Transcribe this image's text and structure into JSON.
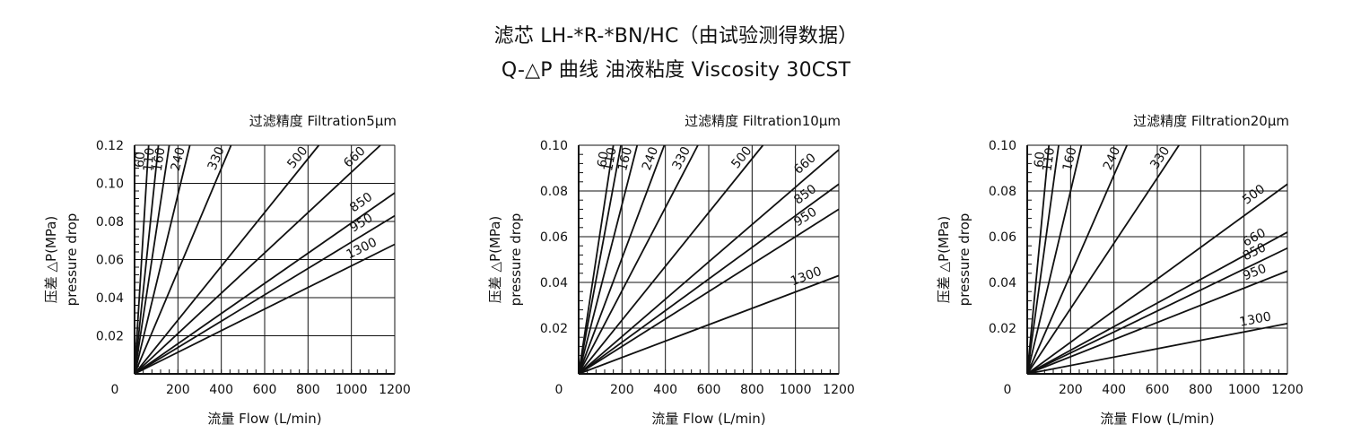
{
  "header": {
    "line1": "滤芯 LH-*R-*BN/HC（由试验测得数据）",
    "line2": "Q-△P 曲线 油液粘度 Viscosity 30CST"
  },
  "chart_data": [
    {
      "type": "line",
      "title": "过滤精度 Filtration5μm",
      "xlabel": "流量 Flow (L/min)",
      "ylabel_cn": "压差 △P(MPa)",
      "ylabel_en": "pressure drop",
      "xlim": [
        0,
        1200
      ],
      "ylim": [
        0,
        0.12
      ],
      "xticks": [
        0,
        200,
        400,
        600,
        800,
        1000,
        1200
      ],
      "yticks": [
        0.02,
        0.04,
        0.06,
        0.08,
        0.1,
        0.12
      ],
      "ytick_labels": [
        "0.02",
        "0.04",
        "0.06",
        "0.08",
        "0.10",
        "0.12"
      ],
      "xtick_labels": [
        "200",
        "400",
        "600",
        "800",
        "1000",
        "1200"
      ],
      "origin_label": "0",
      "grid": true,
      "series": [
        {
          "name": "60",
          "x": [
            0,
            65
          ],
          "y": [
            0,
            0.12
          ]
        },
        {
          "name": "110",
          "x": [
            0,
            110
          ],
          "y": [
            0,
            0.12
          ]
        },
        {
          "name": "160",
          "x": [
            0,
            160
          ],
          "y": [
            0,
            0.12
          ]
        },
        {
          "name": "240",
          "x": [
            0,
            255
          ],
          "y": [
            0,
            0.12
          ]
        },
        {
          "name": "330",
          "x": [
            0,
            445
          ],
          "y": [
            0,
            0.12
          ]
        },
        {
          "name": "500",
          "x": [
            0,
            850
          ],
          "y": [
            0,
            0.12
          ]
        },
        {
          "name": "660",
          "x": [
            0,
            1200
          ],
          "y": [
            0,
            0.127
          ]
        },
        {
          "name": "850",
          "x": [
            0,
            1200
          ],
          "y": [
            0,
            0.095
          ]
        },
        {
          "name": "950",
          "x": [
            0,
            1200
          ],
          "y": [
            0,
            0.083
          ]
        },
        {
          "name": "1300",
          "x": [
            0,
            1200
          ],
          "y": [
            0,
            0.068
          ]
        }
      ]
    },
    {
      "type": "line",
      "title": "过滤精度 Filtration10μm",
      "xlabel": "流量 Flow (L/min)",
      "ylabel_cn": "压差 △P(MPa)",
      "ylabel_en": "pressure drop",
      "xlim": [
        0,
        1200
      ],
      "ylim": [
        0,
        0.1
      ],
      "xticks": [
        0,
        200,
        400,
        600,
        800,
        1000,
        1200
      ],
      "yticks": [
        0.02,
        0.04,
        0.06,
        0.08,
        0.1
      ],
      "ytick_labels": [
        "0.02",
        "0.04",
        "0.06",
        "0.08",
        "0.10"
      ],
      "xtick_labels": [
        "200",
        "400",
        "600",
        "800",
        "1000",
        "1200"
      ],
      "origin_label": "0",
      "grid": true,
      "series": [
        {
          "name": "60",
          "x": [
            0,
            160
          ],
          "y": [
            0,
            0.1
          ]
        },
        {
          "name": "110",
          "x": [
            0,
            195
          ],
          "y": [
            0,
            0.1
          ]
        },
        {
          "name": "160",
          "x": [
            0,
            270
          ],
          "y": [
            0,
            0.1
          ]
        },
        {
          "name": "240",
          "x": [
            0,
            395
          ],
          "y": [
            0,
            0.1
          ]
        },
        {
          "name": "330",
          "x": [
            0,
            550
          ],
          "y": [
            0,
            0.1
          ]
        },
        {
          "name": "500",
          "x": [
            0,
            850
          ],
          "y": [
            0,
            0.1
          ]
        },
        {
          "name": "660",
          "x": [
            0,
            1200
          ],
          "y": [
            0,
            0.098
          ]
        },
        {
          "name": "850",
          "x": [
            0,
            1200
          ],
          "y": [
            0,
            0.083
          ]
        },
        {
          "name": "950",
          "x": [
            0,
            1200
          ],
          "y": [
            0,
            0.072
          ]
        },
        {
          "name": "1300",
          "x": [
            0,
            1200
          ],
          "y": [
            0,
            0.043
          ]
        }
      ]
    },
    {
      "type": "line",
      "title": "过滤精度 Filtration20μm",
      "xlabel": "流量 Flow (L/min)",
      "ylabel_cn": "压差 △P(MPa)",
      "ylabel_en": "pressure drop",
      "xlim": [
        0,
        1200
      ],
      "ylim": [
        0,
        0.1
      ],
      "xticks": [
        0,
        200,
        400,
        600,
        800,
        1000,
        1200
      ],
      "yticks": [
        0.02,
        0.04,
        0.06,
        0.08,
        0.1
      ],
      "ytick_labels": [
        "0.02",
        "0.04",
        "0.06",
        "0.08",
        "0.10"
      ],
      "xtick_labels": [
        "200",
        "400",
        "600",
        "800",
        "1000",
        "1200"
      ],
      "origin_label": "0",
      "grid": true,
      "series": [
        {
          "name": "60",
          "x": [
            0,
            100
          ],
          "y": [
            0,
            0.1
          ]
        },
        {
          "name": "110",
          "x": [
            0,
            145
          ],
          "y": [
            0,
            0.1
          ]
        },
        {
          "name": "160",
          "x": [
            0,
            250
          ],
          "y": [
            0,
            0.1
          ]
        },
        {
          "name": "240",
          "x": [
            0,
            460
          ],
          "y": [
            0,
            0.1
          ]
        },
        {
          "name": "330",
          "x": [
            0,
            700
          ],
          "y": [
            0,
            0.1
          ]
        },
        {
          "name": "500",
          "x": [
            0,
            1200
          ],
          "y": [
            0,
            0.083
          ]
        },
        {
          "name": "660",
          "x": [
            0,
            1200
          ],
          "y": [
            0,
            0.062
          ]
        },
        {
          "name": "850",
          "x": [
            0,
            1200
          ],
          "y": [
            0,
            0.055
          ]
        },
        {
          "name": "950",
          "x": [
            0,
            1200
          ],
          "y": [
            0,
            0.045
          ]
        },
        {
          "name": "1300",
          "x": [
            0,
            1200
          ],
          "y": [
            0,
            0.022
          ]
        }
      ]
    }
  ]
}
